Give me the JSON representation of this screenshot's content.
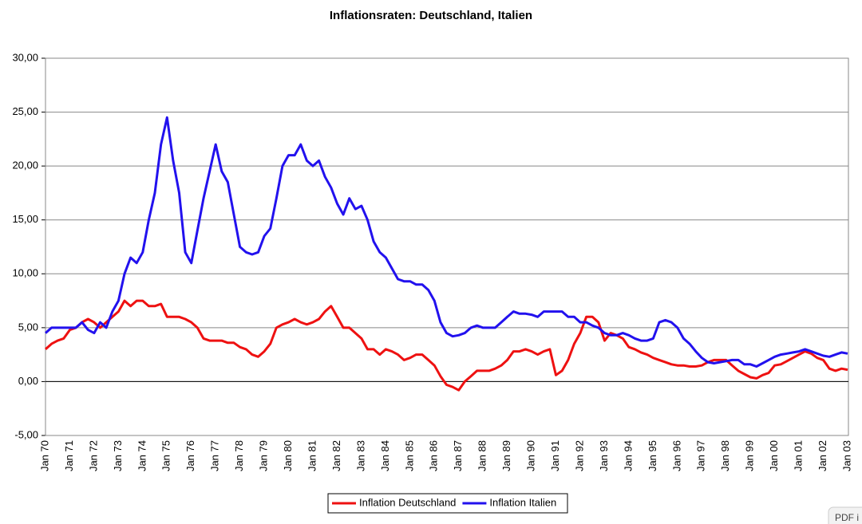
{
  "chart_data": {
    "type": "line",
    "title": "Inflationsraten: Deutschland, Italien",
    "categories": [
      "Jan 70",
      null,
      null,
      null,
      "Jan 71",
      null,
      null,
      null,
      "Jan 72",
      null,
      null,
      null,
      "Jan 73",
      null,
      null,
      null,
      "Jan 74",
      null,
      null,
      null,
      "Jan 75",
      null,
      null,
      null,
      "Jan 76",
      null,
      null,
      null,
      "Jan 77",
      null,
      null,
      null,
      "Jan 78",
      null,
      null,
      null,
      "Jan 79",
      null,
      null,
      null,
      "Jan 80",
      null,
      null,
      null,
      "Jan 81",
      null,
      null,
      null,
      "Jan 82",
      null,
      null,
      null,
      "Jan 83",
      null,
      null,
      null,
      "Jan 84",
      null,
      null,
      null,
      "Jan 85",
      null,
      null,
      null,
      "Jan 86",
      null,
      null,
      null,
      "Jan 87",
      null,
      null,
      null,
      "Jan 88",
      null,
      null,
      null,
      "Jan 89",
      null,
      null,
      null,
      "Jan 90",
      null,
      null,
      null,
      "Jan 91",
      null,
      null,
      null,
      "Jan 92",
      null,
      null,
      null,
      "Jan 93",
      null,
      null,
      null,
      "Jan 94",
      null,
      null,
      null,
      "Jan 95",
      null,
      null,
      null,
      "Jan 96",
      null,
      null,
      null,
      "Jan 97",
      null,
      null,
      null,
      "Jan 98",
      null,
      null,
      null,
      "Jan 99",
      null,
      null,
      null,
      "Jan 00",
      null,
      null,
      null,
      "Jan 01",
      null,
      null,
      null,
      "Jan 02",
      null,
      null,
      null,
      "Jan 03"
    ],
    "series": [
      {
        "name": "Inflation Deutschland",
        "color": "#ee1111",
        "values": [
          3.0,
          3.5,
          3.8,
          4.0,
          4.8,
          5.0,
          5.5,
          5.8,
          5.5,
          5.0,
          5.5,
          6.0,
          6.5,
          7.5,
          7.0,
          7.5,
          7.5,
          7.0,
          7.0,
          7.2,
          6.0,
          6.0,
          6.0,
          5.8,
          5.5,
          5.0,
          4.0,
          3.8,
          3.8,
          3.8,
          3.6,
          3.6,
          3.2,
          3.0,
          2.5,
          2.3,
          2.8,
          3.5,
          5.0,
          5.3,
          5.5,
          5.8,
          5.5,
          5.3,
          5.5,
          5.8,
          6.5,
          7.0,
          6.0,
          5.0,
          5.0,
          4.5,
          4.0,
          3.0,
          3.0,
          2.5,
          3.0,
          2.8,
          2.5,
          2.0,
          2.2,
          2.5,
          2.5,
          2.0,
          1.5,
          0.5,
          -0.3,
          -0.5,
          -0.8,
          0.0,
          0.5,
          1.0,
          1.0,
          1.0,
          1.2,
          1.5,
          2.0,
          2.8,
          2.8,
          3.0,
          2.8,
          2.5,
          2.8,
          3.0,
          0.6,
          1.0,
          2.0,
          3.5,
          4.5,
          6.0,
          6.0,
          5.5,
          3.8,
          4.5,
          4.3,
          4.0,
          3.2,
          3.0,
          2.7,
          2.5,
          2.2,
          2.0,
          1.8,
          1.6,
          1.5,
          1.5,
          1.4,
          1.4,
          1.5,
          1.8,
          2.0,
          2.0,
          2.0,
          1.5,
          1.0,
          0.7,
          0.4,
          0.3,
          0.6,
          0.8,
          1.5,
          1.6,
          1.9,
          2.2,
          2.5,
          2.8,
          2.6,
          2.2,
          2.0,
          1.2,
          1.0,
          1.2,
          1.1
        ]
      },
      {
        "name": "Inflation Italien",
        "color": "#2211ee",
        "values": [
          4.5,
          5.0,
          5.0,
          5.0,
          5.0,
          5.0,
          5.5,
          4.8,
          4.5,
          5.5,
          5.0,
          6.5,
          7.5,
          10.0,
          11.5,
          11.0,
          12.0,
          15.0,
          17.5,
          22.0,
          24.5,
          20.5,
          17.5,
          12.0,
          11.0,
          14.0,
          17.0,
          19.5,
          22.0,
          19.5,
          18.5,
          15.5,
          12.5,
          12.0,
          11.8,
          12.0,
          13.5,
          14.2,
          17.0,
          20.0,
          21.0,
          21.0,
          22.0,
          20.5,
          20.0,
          20.5,
          19.0,
          18.0,
          16.5,
          15.5,
          17.0,
          16.0,
          16.3,
          15.0,
          13.0,
          12.0,
          11.5,
          10.5,
          9.5,
          9.3,
          9.3,
          9.0,
          9.0,
          8.5,
          7.5,
          5.5,
          4.5,
          4.2,
          4.3,
          4.5,
          5.0,
          5.2,
          5.0,
          5.0,
          5.0,
          5.5,
          6.0,
          6.5,
          6.3,
          6.3,
          6.2,
          6.0,
          6.5,
          6.5,
          6.5,
          6.5,
          6.0,
          6.0,
          5.5,
          5.5,
          5.2,
          5.0,
          4.5,
          4.3,
          4.3,
          4.5,
          4.3,
          4.0,
          3.8,
          3.8,
          4.0,
          5.5,
          5.7,
          5.5,
          5.0,
          4.0,
          3.5,
          2.8,
          2.2,
          1.8,
          1.7,
          1.8,
          1.9,
          2.0,
          2.0,
          1.6,
          1.6,
          1.4,
          1.7,
          2.0,
          2.3,
          2.5,
          2.6,
          2.7,
          2.8,
          3.0,
          2.8,
          2.6,
          2.4,
          2.3,
          2.5,
          2.7,
          2.6
        ]
      }
    ],
    "ylim": [
      -5,
      30
    ],
    "yticks": [
      {
        "value": -5,
        "label": "-5,00"
      },
      {
        "value": 0,
        "label": "0,00"
      },
      {
        "value": 5,
        "label": "5,00"
      },
      {
        "value": 10,
        "label": "10,00"
      },
      {
        "value": 15,
        "label": "15,00"
      },
      {
        "value": 20,
        "label": "20,00"
      },
      {
        "value": 25,
        "label": "25,00"
      },
      {
        "value": 30,
        "label": "30,00"
      }
    ],
    "grid": true,
    "legend": "bottom",
    "overlay_label": "PDF i"
  }
}
